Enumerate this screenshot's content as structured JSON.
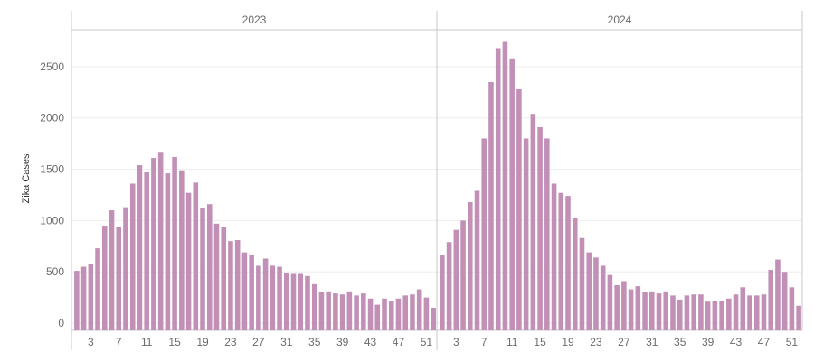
{
  "colors": {
    "bar": "#c290b7",
    "axis": "#c8c8c8",
    "grid": "#eeeeee",
    "text": "#6b6b6b"
  },
  "chart_data": {
    "type": "bar",
    "ylabel": "Zika Cases",
    "xlabel": "",
    "ylim": [
      -70,
      2860
    ],
    "yticks": [
      0,
      500,
      1000,
      1500,
      2000,
      2500
    ],
    "grid": "horizontal",
    "panels": [
      {
        "name": "2023",
        "xtick_labels": [
          "3",
          "7",
          "11",
          "15",
          "19",
          "23",
          "27",
          "31",
          "35",
          "39",
          "43",
          "47",
          "51"
        ],
        "x": [
          1,
          2,
          3,
          4,
          5,
          6,
          7,
          8,
          9,
          10,
          11,
          12,
          13,
          14,
          15,
          16,
          17,
          18,
          19,
          20,
          21,
          22,
          23,
          24,
          25,
          26,
          27,
          28,
          29,
          30,
          31,
          32,
          33,
          34,
          35,
          36,
          37,
          38,
          39,
          40,
          41,
          42,
          43,
          44,
          45,
          46,
          47,
          48,
          49,
          50,
          51,
          52
        ],
        "values": [
          510,
          550,
          580,
          730,
          950,
          1100,
          940,
          1130,
          1360,
          1540,
          1470,
          1610,
          1670,
          1460,
          1620,
          1490,
          1270,
          1370,
          1120,
          1160,
          970,
          940,
          800,
          810,
          690,
          670,
          560,
          630,
          560,
          550,
          490,
          480,
          480,
          460,
          380,
          300,
          310,
          290,
          280,
          310,
          270,
          290,
          240,
          180,
          240,
          220,
          240,
          270,
          280,
          330,
          250,
          150
        ]
      },
      {
        "name": "2024",
        "xtick_labels": [
          "3",
          "7",
          "11",
          "15",
          "19",
          "23",
          "27",
          "31",
          "35",
          "39",
          "43",
          "47",
          "51"
        ],
        "x": [
          1,
          2,
          3,
          4,
          5,
          6,
          7,
          8,
          9,
          10,
          11,
          12,
          13,
          14,
          15,
          16,
          17,
          18,
          19,
          20,
          21,
          22,
          23,
          24,
          25,
          26,
          27,
          28,
          29,
          30,
          31,
          32,
          33,
          34,
          35,
          36,
          37,
          38,
          39,
          40,
          41,
          42,
          43,
          44,
          45,
          46,
          47,
          48,
          49,
          50,
          51,
          52
        ],
        "values": [
          660,
          790,
          910,
          1000,
          1180,
          1290,
          1800,
          2350,
          2680,
          2750,
          2580,
          2280,
          1800,
          2040,
          1910,
          1800,
          1360,
          1270,
          1240,
          1030,
          830,
          690,
          640,
          560,
          470,
          370,
          410,
          330,
          360,
          300,
          310,
          290,
          310,
          270,
          230,
          270,
          280,
          280,
          210,
          220,
          220,
          240,
          280,
          350,
          270,
          270,
          280,
          520,
          620,
          500,
          350,
          170
        ]
      }
    ]
  }
}
